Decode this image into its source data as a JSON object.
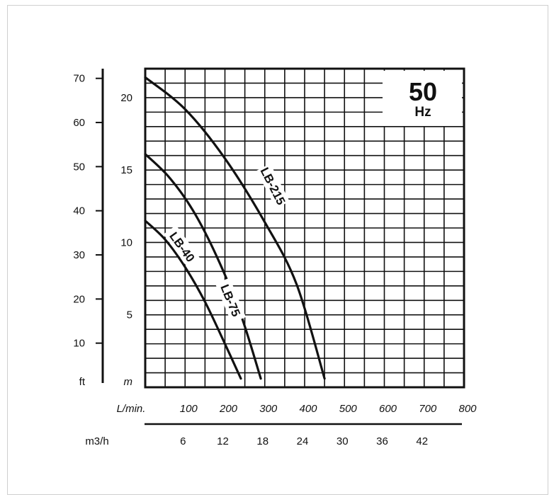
{
  "chart_data": {
    "type": "line",
    "badge": {
      "value": "50",
      "unit": "Hz"
    },
    "x_primary": {
      "unit": "L/min.",
      "ticks": [
        "100",
        "200",
        "300",
        "400",
        "500",
        "600",
        "700",
        "800"
      ],
      "range": [
        0,
        800
      ]
    },
    "x_secondary": {
      "unit": "m3/h",
      "ticks": [
        "6",
        "12",
        "18",
        "24",
        "30",
        "36",
        "42"
      ]
    },
    "y_ft": {
      "unit": "ft",
      "ticks": [
        "10",
        "20",
        "30",
        "40",
        "50",
        "60",
        "70"
      ],
      "range": [
        0,
        72.2
      ]
    },
    "y_m": {
      "unit": "m",
      "ticks": [
        "5",
        "10",
        "15",
        "20"
      ],
      "range": [
        0,
        22
      ]
    },
    "series": [
      {
        "name": "LB-40",
        "x": [
          0,
          50,
          100,
          150,
          200,
          240
        ],
        "y": [
          11.5,
          10.2,
          8.3,
          5.9,
          3.0,
          0.6
        ]
      },
      {
        "name": "LB-75",
        "x": [
          0,
          60,
          120,
          180,
          240,
          290
        ],
        "y": [
          16.1,
          14.5,
          12.2,
          9.0,
          5.0,
          0.6
        ]
      },
      {
        "name": "LB-215",
        "x": [
          0,
          100,
          200,
          300,
          380,
          450
        ],
        "y": [
          21.4,
          19.2,
          15.8,
          11.4,
          7.1,
          0.6
        ]
      }
    ]
  }
}
